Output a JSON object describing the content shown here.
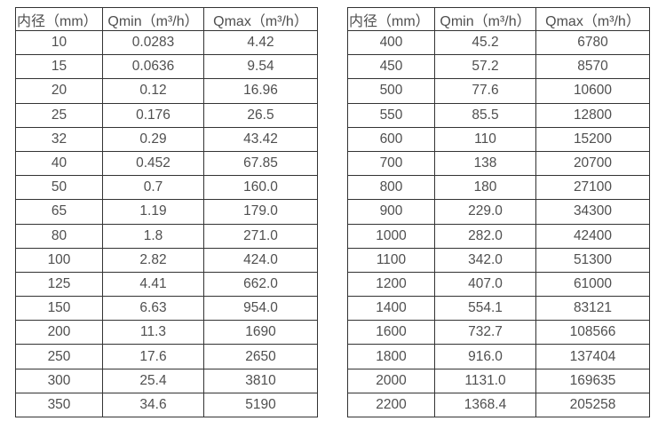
{
  "colors": {
    "border": "#333333",
    "text": "#4f4f4f",
    "background": "#ffffff"
  },
  "tables": [
    {
      "name": "flow-spec-small-diameters",
      "headers": [
        "内径（mm）",
        "Qmin（m³/h）",
        "Qmax（m³/h）"
      ],
      "rows": [
        [
          "10",
          "0.0283",
          "4.42"
        ],
        [
          "15",
          "0.0636",
          "9.54"
        ],
        [
          "20",
          "0.12",
          "16.96"
        ],
        [
          "25",
          "0.176",
          "26.5"
        ],
        [
          "32",
          "0.29",
          "43.42"
        ],
        [
          "40",
          "0.452",
          "67.85"
        ],
        [
          "50",
          "0.7",
          "160.0"
        ],
        [
          "65",
          "1.19",
          "179.0"
        ],
        [
          "80",
          "1.8",
          "271.0"
        ],
        [
          "100",
          "2.82",
          "424.0"
        ],
        [
          "125",
          "4.41",
          "662.0"
        ],
        [
          "150",
          "6.63",
          "954.0"
        ],
        [
          "200",
          "11.3",
          "1690"
        ],
        [
          "250",
          "17.6",
          "2650"
        ],
        [
          "300",
          "25.4",
          "3810"
        ],
        [
          "350",
          "34.6",
          "5190"
        ]
      ]
    },
    {
      "name": "flow-spec-large-diameters",
      "headers": [
        "内径（mm）",
        "Qmin（m³/h）",
        "Qmax（m³/h）"
      ],
      "rows": [
        [
          "400",
          "45.2",
          "6780"
        ],
        [
          "450",
          "57.2",
          "8570"
        ],
        [
          "500",
          "77.6",
          "10600"
        ],
        [
          "550",
          "85.5",
          "12800"
        ],
        [
          "600",
          "110",
          "15200"
        ],
        [
          "700",
          "138",
          "20700"
        ],
        [
          "800",
          "180",
          "27100"
        ],
        [
          "900",
          "229.0",
          "34300"
        ],
        [
          "1000",
          "282.0",
          "42400"
        ],
        [
          "1100",
          "342.0",
          "51300"
        ],
        [
          "1200",
          "407.0",
          "61000"
        ],
        [
          "1400",
          "554.1",
          "83121"
        ],
        [
          "1600",
          "732.7",
          "108566"
        ],
        [
          "1800",
          "916.0",
          "137404"
        ],
        [
          "2000",
          "1131.0",
          "169635"
        ],
        [
          "2200",
          "1368.4",
          "205258"
        ]
      ]
    }
  ]
}
